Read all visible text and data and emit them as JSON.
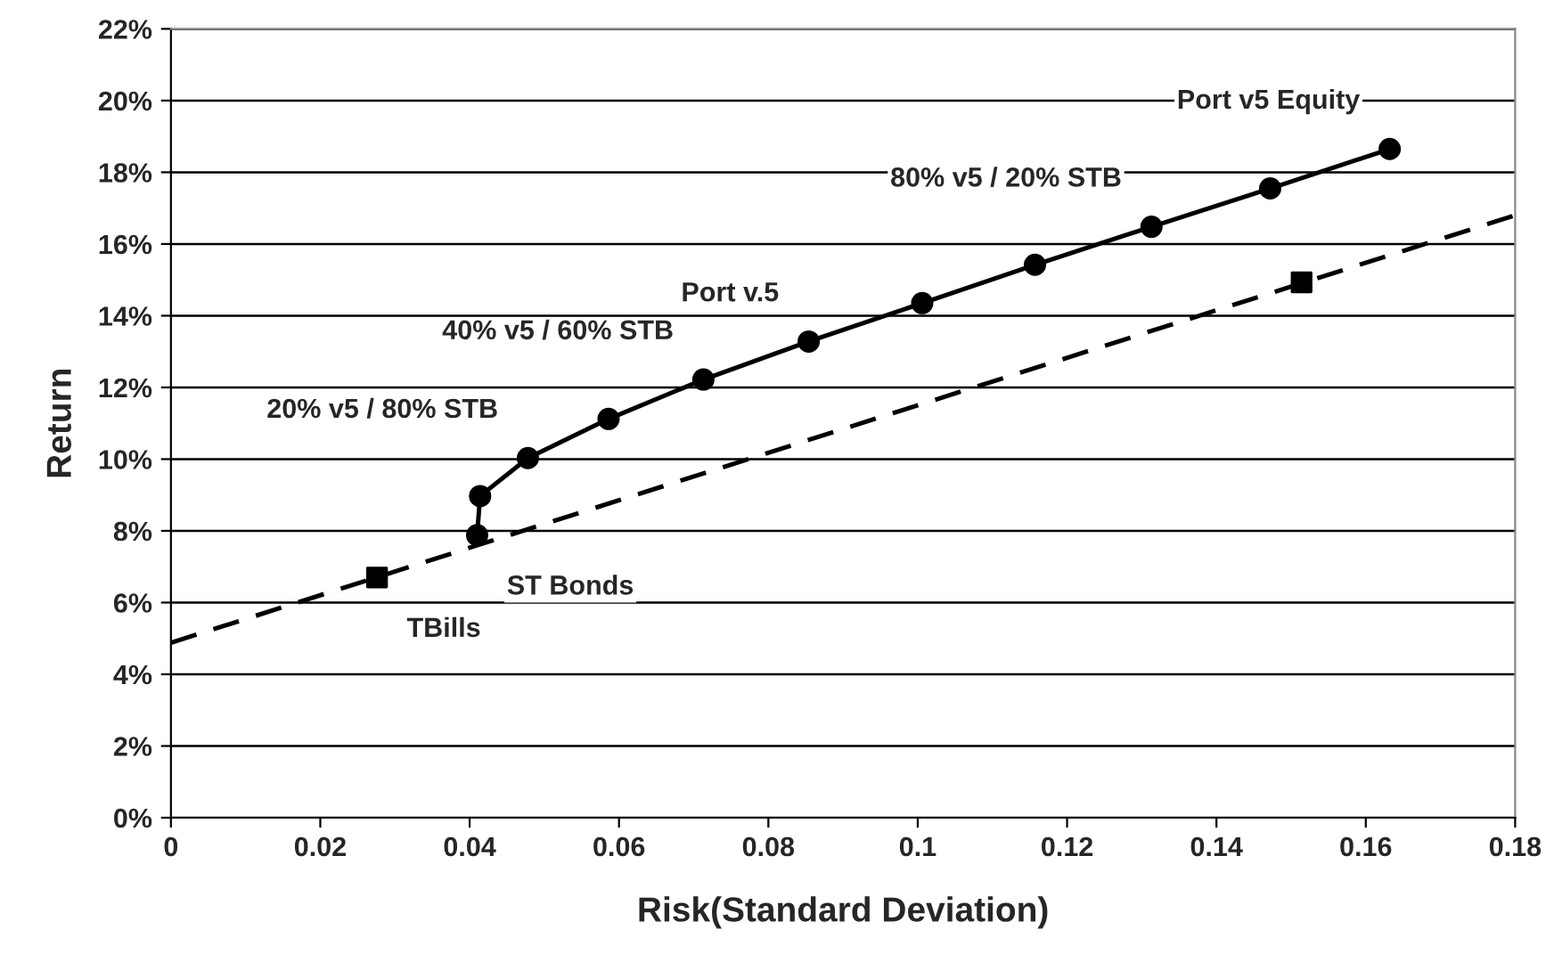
{
  "chart_data": {
    "type": "line",
    "xlabel": "Risk(Standard Deviation)",
    "ylabel": "Return",
    "series": [
      {
        "color": "#000000",
        "marker": "circle",
        "line_style": "solid",
        "x": [
          0.041,
          0.0414,
          0.0478,
          0.0586,
          0.0713,
          0.0854,
          0.1006,
          0.1157,
          0.1313,
          0.1472,
          0.1632
        ],
        "values": [
          7.88,
          8.97,
          10.03,
          11.12,
          12.22,
          13.28,
          14.35,
          15.42,
          16.48,
          17.55,
          18.65
        ]
      },
      {
        "color": "#000000",
        "marker": "none",
        "line_style": "dashed",
        "x": [
          0,
          0.18
        ],
        "values": [
          4.88,
          16.8
        ]
      },
      {
        "type": "scatter",
        "color": "#000000",
        "marker": "square",
        "x": [
          0.0276,
          0.1514
        ],
        "values": [
          6.7,
          14.93
        ]
      }
    ],
    "annotations": [
      {
        "text": "Port v5 Equity",
        "x": 0.1632,
        "y": 18.65
      },
      {
        "text": "80% v5 / 20% STB",
        "x": 0.1313,
        "y": 16.48
      },
      {
        "text": "Port v.5",
        "x": 0.0854,
        "y": 13.28
      },
      {
        "text": "40% v5 / 60% STB",
        "x": 0.0713,
        "y": 12.22
      },
      {
        "text": "20% v5 / 80% STB",
        "x": 0.0478,
        "y": 10.03
      },
      {
        "text": "ST Bonds",
        "x": 0.041,
        "y": 7.88
      },
      {
        "text": "TBills",
        "x": 0.0276,
        "y": 6.7
      }
    ],
    "xlim": [
      0,
      0.18
    ],
    "xticks": [
      0,
      0.02,
      0.04,
      0.06,
      0.08,
      0.1,
      0.12,
      0.14,
      0.16,
      0.18
    ],
    "ylim": [
      0,
      22
    ],
    "yticks": [
      {
        "value": 0,
        "label": "0%"
      },
      {
        "value": 2,
        "label": "2%"
      },
      {
        "value": 4,
        "label": "4%"
      },
      {
        "value": 6,
        "label": "6%"
      },
      {
        "value": 8,
        "label": "8%"
      },
      {
        "value": 10,
        "label": "10%"
      },
      {
        "value": 12,
        "label": "12%"
      },
      {
        "value": 14,
        "label": "14%"
      },
      {
        "value": 16,
        "label": "16%"
      },
      {
        "value": 18,
        "label": "18%"
      },
      {
        "value": 20,
        "label": "20%"
      },
      {
        "value": 22,
        "label": "22%"
      }
    ],
    "grid": "y",
    "legend": false
  }
}
